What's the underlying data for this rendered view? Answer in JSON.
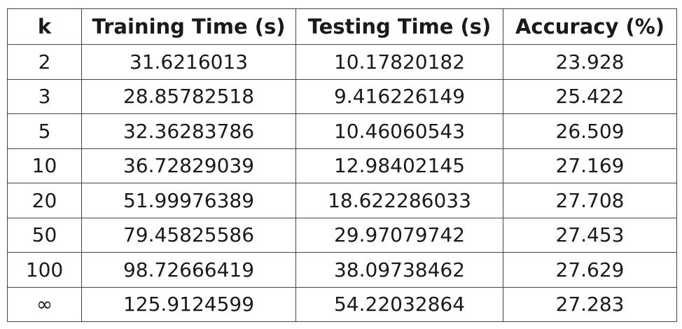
{
  "table": {
    "headers": [
      "k",
      "Training Time (s)",
      "Testing Time (s)",
      "Accuracy (%)"
    ],
    "rows": [
      [
        "2",
        "31.6216013",
        "10.17820182",
        "23.928"
      ],
      [
        "3",
        "28.85782518",
        "9.416226149",
        "25.422"
      ],
      [
        "5",
        "32.36283786",
        "10.46060543",
        "26.509"
      ],
      [
        "10",
        "36.72829039",
        "12.98402145",
        "27.169"
      ],
      [
        "20",
        "51.99976389",
        "18.622286033",
        "27.708"
      ],
      [
        "50",
        "79.45825586",
        "29.97079742",
        "27.453"
      ],
      [
        "100",
        "98.72666419",
        "38.09738462",
        "27.629"
      ],
      [
        "∞",
        "125.9124599",
        "54.22032864",
        "27.283"
      ]
    ]
  }
}
